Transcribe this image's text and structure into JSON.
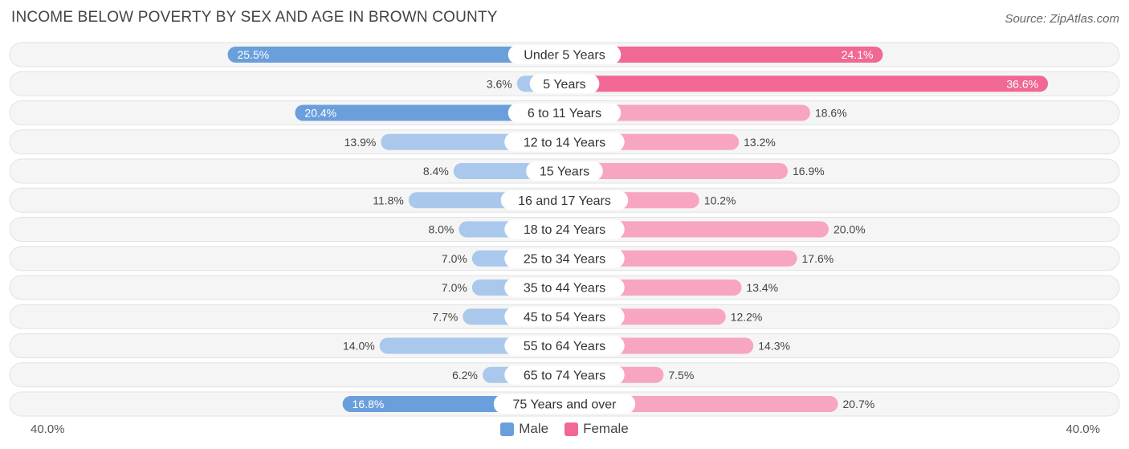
{
  "header": {
    "title": "INCOME BELOW POVERTY BY SEX AND AGE IN BROWN COUNTY",
    "source": "Source: ZipAtlas.com"
  },
  "axis": {
    "left_label": "40.0%",
    "right_label": "40.0%"
  },
  "legend": {
    "male_label": "Male",
    "female_label": "Female"
  },
  "colors": {
    "male_strong": "#6a9fdc",
    "male_light": "#a9c8ec",
    "female_strong": "#f06893",
    "female_light": "#f7a5c0",
    "row_bg": "#f0f0f0"
  },
  "chart_data": {
    "type": "bar",
    "orientation": "horizontal-diverging",
    "title": "INCOME BELOW POVERTY BY SEX AND AGE IN BROWN COUNTY",
    "xlim": [
      -40,
      40
    ],
    "categories": [
      "Under 5 Years",
      "5 Years",
      "6 to 11 Years",
      "12 to 14 Years",
      "15 Years",
      "16 and 17 Years",
      "18 to 24 Years",
      "25 to 34 Years",
      "35 to 44 Years",
      "45 to 54 Years",
      "55 to 64 Years",
      "65 to 74 Years",
      "75 Years and over"
    ],
    "series": [
      {
        "name": "Male",
        "values": [
          25.5,
          3.6,
          20.4,
          13.9,
          8.4,
          11.8,
          8.0,
          7.0,
          7.0,
          7.7,
          14.0,
          6.2,
          16.8
        ],
        "labels": [
          "25.5%",
          "3.6%",
          "20.4%",
          "13.9%",
          "8.4%",
          "11.8%",
          "8.0%",
          "7.0%",
          "7.0%",
          "7.7%",
          "14.0%",
          "6.2%",
          "16.8%"
        ]
      },
      {
        "name": "Female",
        "values": [
          24.1,
          36.6,
          18.6,
          13.2,
          16.9,
          10.2,
          20.0,
          17.6,
          13.4,
          12.2,
          14.3,
          7.5,
          20.7
        ],
        "labels": [
          "24.1%",
          "36.6%",
          "18.6%",
          "13.2%",
          "16.9%",
          "10.2%",
          "20.0%",
          "17.6%",
          "13.4%",
          "12.2%",
          "14.3%",
          "7.5%",
          "20.7%"
        ]
      }
    ]
  }
}
